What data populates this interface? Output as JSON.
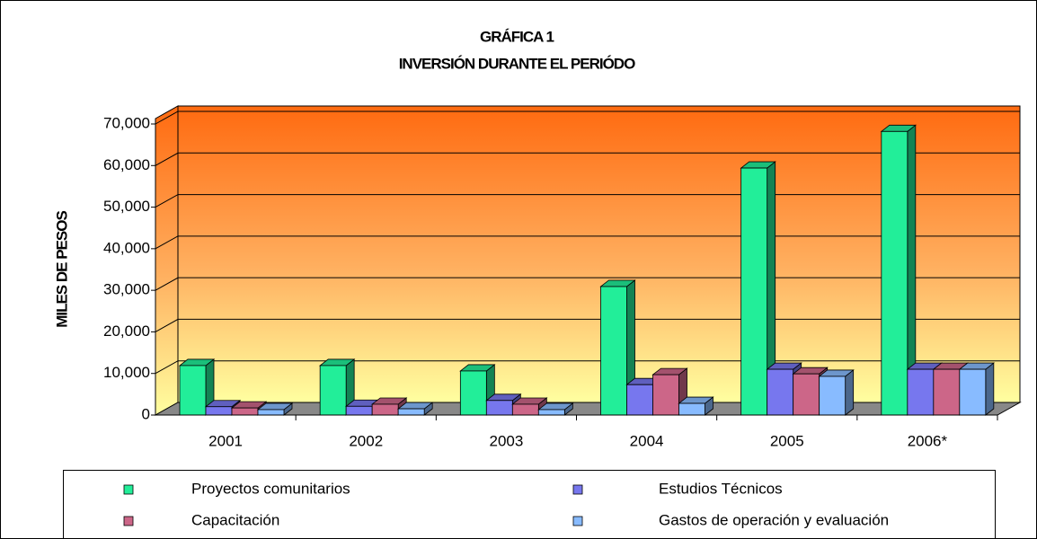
{
  "chart_data": {
    "type": "bar3d",
    "title": "GRÁFICA 1",
    "subtitle": "INVERSIÓN DURANTE EL PERIÓDO",
    "y_label": "MILES DE PESOS",
    "categories": [
      "2001",
      "2002",
      "2003",
      "2004",
      "2005",
      "2006*"
    ],
    "series": [
      {
        "name": "Proyectos comunitarios",
        "color": "#22ee99",
        "values": [
          11900,
          11900,
          10600,
          30900,
          59400,
          68200
        ]
      },
      {
        "name": "Estudios Técnicos",
        "color": "#7777ee",
        "values": [
          2000,
          2100,
          3500,
          7300,
          11000,
          11000
        ]
      },
      {
        "name": "Capacitación",
        "color": "#cc6688",
        "values": [
          1700,
          2600,
          2600,
          9700,
          9900,
          11000
        ]
      },
      {
        "name": "Gastos de operación y evaluación",
        "color": "#88bbff",
        "values": [
          1300,
          1500,
          1300,
          2800,
          9300,
          11000
        ]
      }
    ],
    "ylim": [
      0,
      70000
    ],
    "yticks": [
      0,
      {
        "value": 10000,
        "label": "10,000"
      },
      {
        "value": 20000,
        "label": "20,000"
      },
      {
        "value": 30000,
        "label": "30,000"
      },
      {
        "value": 40000,
        "label": "40,000"
      },
      {
        "value": 50000,
        "label": "50,000"
      },
      {
        "value": 60000,
        "label": "60,000"
      },
      {
        "value": 70000,
        "label": "70,000"
      }
    ],
    "grid": true
  }
}
